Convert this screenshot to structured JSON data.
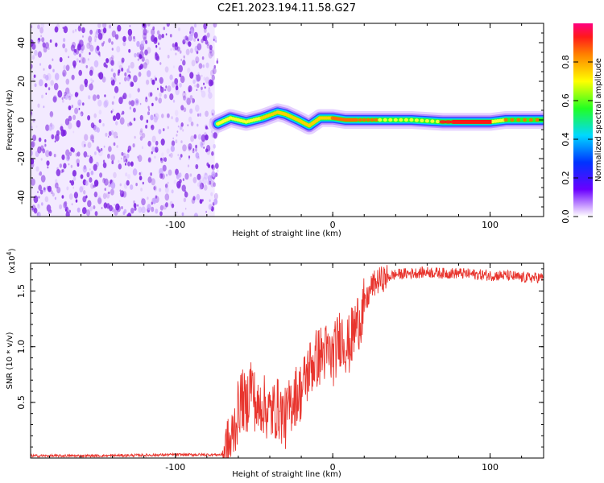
{
  "title": "C2E1.2023.194.11.58.G27",
  "colors": {
    "snr_line": "#e8352e",
    "noise_purple": "#7a1fe0",
    "axis": "#000000"
  },
  "colorbar": {
    "label": "Normalized spectral amplitude",
    "ticks": [
      "0.0",
      "0.2",
      "0.4",
      "0.6",
      "0.8"
    ],
    "range": [
      0,
      1
    ]
  },
  "chart_data": [
    {
      "type": "heatmap",
      "id": "spectrogram",
      "xlabel": "Height of straight line (km)",
      "ylabel": "Frequency (Hz)",
      "xlim": [
        -192,
        134
      ],
      "ylim": [
        -50,
        50
      ],
      "x_ticks": [
        -100,
        0,
        100
      ],
      "x_tick_labels": [
        "-100",
        "0",
        "100"
      ],
      "y_ticks": [
        40,
        20,
        0,
        -20,
        -40
      ],
      "y_tick_labels": [
        "40",
        "20",
        "0",
        "-20",
        "-40"
      ],
      "noise_region_x": [
        -192,
        -75
      ],
      "signal_track": {
        "x": [
          -73,
          -65,
          -55,
          -45,
          -35,
          -30,
          -22,
          -15,
          -8,
          0,
          8,
          15,
          30,
          50,
          70,
          90,
          100,
          110,
          134
        ],
        "freq": [
          -2,
          1,
          -1,
          1,
          4,
          3,
          0,
          -3,
          1,
          1,
          0,
          0,
          0,
          0,
          -1,
          -1,
          -1,
          0,
          0
        ],
        "amplitude": [
          0.55,
          0.6,
          0.55,
          0.62,
          0.7,
          0.7,
          0.65,
          0.7,
          0.75,
          0.8,
          0.82,
          0.85,
          0.55,
          0.5,
          0.98,
          0.98,
          0.6,
          0.9,
          0.55
        ]
      }
    },
    {
      "type": "line",
      "id": "snr",
      "xlabel": "Height of straight line (km)",
      "ylabel": "SNR (10 * v/v)",
      "multiplier_label": "(x10",
      "multiplier_exp": "4",
      "xlim": [
        -192,
        134
      ],
      "ylim": [
        0,
        1.75
      ],
      "x_ticks": [
        -100,
        0,
        100
      ],
      "x_tick_labels": [
        "-100",
        "0",
        "100"
      ],
      "y_ticks": [
        0.5,
        1.0,
        1.5
      ],
      "y_tick_labels": [
        "0.5",
        "1.0",
        "1.5"
      ],
      "series": [
        {
          "x": [
            -192,
            -150,
            -100,
            -80,
            -70,
            -65,
            -58,
            -55,
            -52,
            -48,
            -45,
            -40,
            -35,
            -30,
            -25,
            -20,
            -15,
            -10,
            -5,
            0,
            5,
            10,
            15,
            20,
            25,
            30,
            40,
            50,
            60,
            70,
            80,
            90,
            100,
            110,
            120,
            134
          ],
          "values": [
            0.02,
            0.02,
            0.03,
            0.03,
            0.03,
            0.12,
            0.55,
            0.45,
            0.7,
            0.4,
            0.5,
            0.4,
            0.45,
            0.35,
            0.55,
            0.6,
            0.8,
            0.9,
            0.95,
            0.9,
            1.1,
            1.0,
            1.2,
            1.35,
            1.55,
            1.6,
            1.65,
            1.66,
            1.67,
            1.66,
            1.66,
            1.65,
            1.64,
            1.64,
            1.62,
            1.62
          ]
        }
      ]
    }
  ]
}
